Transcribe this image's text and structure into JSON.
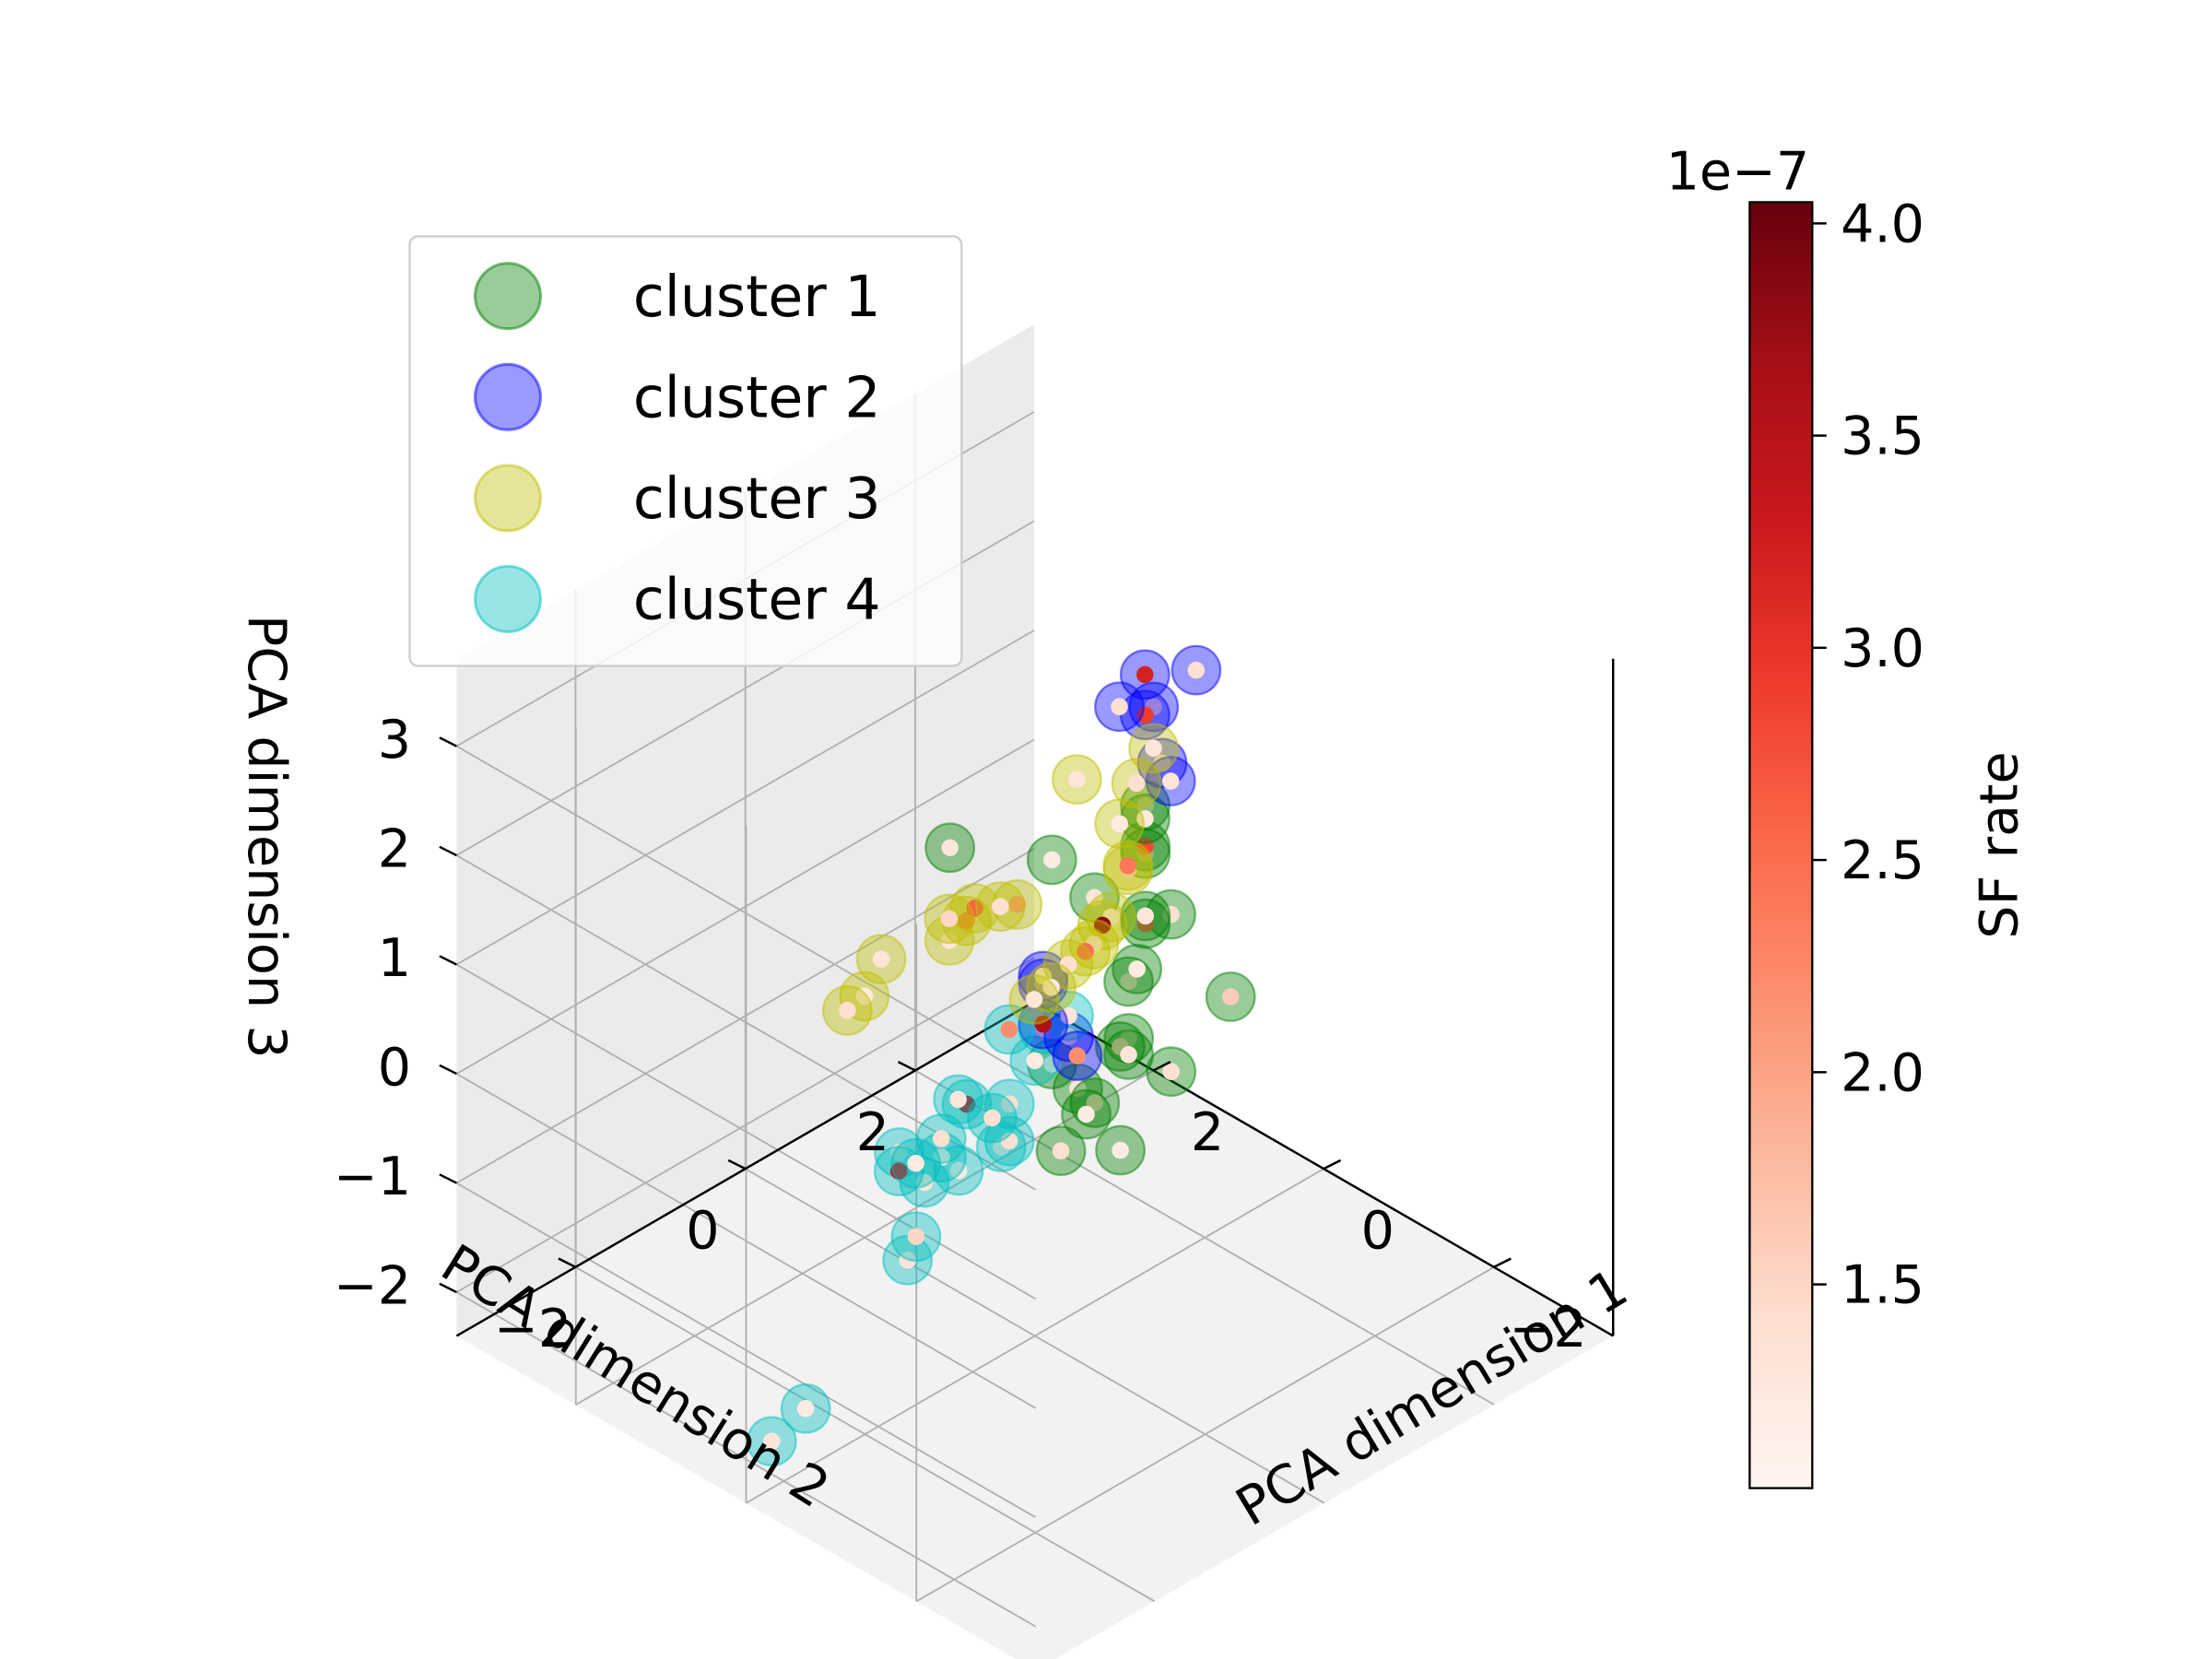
{
  "chart_data": {
    "type": "scatter",
    "projection": "3d",
    "xlabel": "PCA dimension 1",
    "ylabel": "PCA dimension 2",
    "zlabel": "PCA dimension 3",
    "xlim": [
      -3.4,
      3.4
    ],
    "ylim": [
      -3.4,
      3.4
    ],
    "zlim": [
      -2.4,
      3.8
    ],
    "xticks": [
      {
        "v": -2,
        "label": "−2"
      },
      {
        "v": 0,
        "label": "0"
      },
      {
        "v": 2,
        "label": "2"
      }
    ],
    "yticks": [
      {
        "v": -2,
        "label": "−2"
      },
      {
        "v": 0,
        "label": "0"
      },
      {
        "v": 2,
        "label": "2"
      }
    ],
    "zticks": [
      {
        "v": -2,
        "label": "−2"
      },
      {
        "v": -1,
        "label": "−1"
      },
      {
        "v": 0,
        "label": "0"
      },
      {
        "v": 1,
        "label": "1"
      },
      {
        "v": 2,
        "label": "2"
      },
      {
        "v": 3,
        "label": "3"
      }
    ],
    "legend": {
      "placement": "upper-left",
      "entries": [
        {
          "label": "cluster 1",
          "color": "#008000"
        },
        {
          "label": "cluster 2",
          "color": "#0000ff"
        },
        {
          "label": "cluster 3",
          "color": "#bfbf00"
        },
        {
          "label": "cluster 4",
          "color": "#00bfbf"
        }
      ]
    },
    "colorbar": {
      "label": "SF rate",
      "offset_label": "1e−7",
      "range": [
        1.02,
        4.05
      ],
      "ticks": [
        {
          "v": 1.5,
          "label": "1.5"
        },
        {
          "v": 2.0,
          "label": "2.0"
        },
        {
          "v": 2.5,
          "label": "2.5"
        },
        {
          "v": 3.0,
          "label": "3.0"
        },
        {
          "v": 3.5,
          "label": "3.5"
        },
        {
          "v": 4.0,
          "label": "4.0"
        }
      ],
      "colormap": "Reds",
      "stops": [
        "#fff5f0",
        "#fee0d2",
        "#fcbba1",
        "#fc9272",
        "#fb6a4a",
        "#ef3b2c",
        "#cb181d",
        "#a50f15",
        "#67000d"
      ]
    },
    "series": [
      {
        "name": "cluster 1",
        "color": "#008000",
        "points": [
          [
            -2.6,
            -2.3,
            1.5,
            1.4
          ],
          [
            -2.4,
            -1.9,
            1.8,
            1.3
          ],
          [
            -2.2,
            -1.5,
            1.4,
            1.5
          ],
          [
            -2.3,
            -1.2,
            1.9,
            1.2
          ],
          [
            -2.0,
            -1.0,
            1.6,
            1.6
          ],
          [
            -1.8,
            -0.7,
            1.3,
            1.3
          ],
          [
            -1.5,
            -0.4,
            1.7,
            1.4
          ],
          [
            -1.2,
            0.0,
            1.5,
            1.2
          ],
          [
            -0.9,
            0.4,
            1.6,
            2.6
          ],
          [
            -0.6,
            0.7,
            1.4,
            1.3
          ],
          [
            -0.3,
            1.0,
            1.7,
            1.5
          ],
          [
            0.0,
            1.3,
            1.5,
            2.8
          ],
          [
            0.3,
            1.6,
            1.6,
            1.4
          ],
          [
            0.5,
            1.8,
            1.3,
            1.2
          ],
          [
            -1.0,
            -0.3,
            2.2,
            1.3
          ],
          [
            -1.4,
            0.2,
            2.0,
            1.4
          ],
          [
            -0.7,
            -0.5,
            2.5,
            1.2
          ],
          [
            -0.2,
            -1.2,
            2.7,
            1.3
          ],
          [
            -1.6,
            -1.0,
            0.8,
            1.2
          ],
          [
            -1.0,
            -0.8,
            0.9,
            1.3
          ],
          [
            -2.0,
            -0.4,
            1.1,
            1.4
          ],
          [
            -2.5,
            -1.5,
            1.1,
            1.2
          ],
          [
            -1.7,
            0.6,
            1.2,
            1.6
          ]
        ]
      },
      {
        "name": "cluster 2",
        "color": "#0000ff",
        "points": [
          [
            0.3,
            1.8,
            1.9,
            1.3
          ],
          [
            0.7,
            2.1,
            2.1,
            1.5
          ],
          [
            1.0,
            2.3,
            1.8,
            2.9
          ],
          [
            0.6,
            2.5,
            2.3,
            1.4
          ],
          [
            1.3,
            2.6,
            1.9,
            3.2
          ],
          [
            0.4,
            2.0,
            1.6,
            1.3
          ],
          [
            1.9,
            2.9,
            1.2,
            1.4
          ],
          [
            0.4,
            0.8,
            -0.2,
            1.5
          ],
          [
            0.9,
            1.0,
            -0.4,
            3.6
          ],
          [
            1.2,
            1.3,
            -0.3,
            1.3
          ],
          [
            0.6,
            1.1,
            -0.6,
            2.2
          ],
          [
            1.5,
            1.6,
            -0.5,
            1.2
          ]
        ]
      },
      {
        "name": "cluster 3",
        "color": "#bfbf00",
        "points": [
          [
            1.5,
            2.9,
            1.0,
            1.3
          ],
          [
            1.8,
            3.0,
            0.5,
            1.4
          ],
          [
            1.6,
            2.6,
            0.4,
            1.2
          ],
          [
            1.3,
            2.4,
            0.2,
            1.5
          ],
          [
            2.3,
            2.8,
            0.4,
            1.3
          ],
          [
            1.9,
            3.0,
            -0.3,
            2.4
          ],
          [
            1.7,
            2.6,
            -0.5,
            1.2
          ],
          [
            2.0,
            2.8,
            -0.8,
            3.8
          ],
          [
            2.3,
            3.0,
            -1.2,
            1.3
          ],
          [
            2.5,
            3.1,
            -1.4,
            2.5
          ],
          [
            2.8,
            3.2,
            -1.7,
            1.4
          ],
          [
            3.0,
            3.2,
            -2.0,
            1.2
          ],
          [
            3.2,
            3.2,
            -2.2,
            1.3
          ],
          [
            2.6,
            2.4,
            -0.7,
            2.1
          ],
          [
            2.9,
            2.5,
            -0.9,
            1.4
          ],
          [
            2.7,
            2.0,
            -0.6,
            2.6
          ],
          [
            2.4,
            1.6,
            -0.4,
            2.5
          ],
          [
            2.3,
            1.3,
            -0.4,
            1.3
          ],
          [
            3.3,
            2.3,
            -1.1,
            1.5
          ],
          [
            3.4,
            1.6,
            -1.2,
            1.3
          ],
          [
            3.3,
            1.1,
            -1.4,
            1.4
          ],
          [
            2.9,
            0.9,
            -1.0,
            1.2
          ]
        ]
      },
      {
        "name": "cluster 4",
        "color": "#00bfbf",
        "points": [
          [
            0.5,
            0.9,
            -0.1,
            1.3
          ],
          [
            0.3,
            0.4,
            0.1,
            1.5
          ],
          [
            -0.2,
            -0.2,
            0.3,
            1.2
          ],
          [
            -0.6,
            -0.9,
            0.4,
            1.4
          ],
          [
            -1.1,
            -1.5,
            0.5,
            1.3
          ],
          [
            -1.2,
            -2.1,
            0.6,
            1.2
          ],
          [
            -1.0,
            -2.6,
            0.9,
            1.3
          ],
          [
            0.8,
            0.3,
            -0.9,
            1.4
          ],
          [
            0.9,
            -0.5,
            -1.0,
            1.2
          ],
          [
            0.7,
            -0.9,
            -0.8,
            3.4
          ],
          [
            0.1,
            -1.2,
            -0.5,
            1.3
          ],
          [
            -0.4,
            -1.8,
            -0.5,
            1.5
          ],
          [
            -0.7,
            -2.2,
            -0.4,
            1.3
          ],
          [
            -0.3,
            -1.4,
            0.0,
            1.2
          ],
          [
            1.3,
            0.4,
            -1.0,
            1.3
          ],
          [
            1.0,
            -0.1,
            -1.0,
            1.4
          ],
          [
            1.6,
            1.3,
            -0.9,
            2.2
          ],
          [
            -0.3,
            -3.4,
            -1.7,
            1.3
          ],
          [
            -0.5,
            -3.2,
            -1.4,
            1.2
          ],
          [
            0.2,
            -0.6,
            -0.1,
            3.5
          ],
          [
            -0.2,
            -0.5,
            -0.3,
            1.4
          ]
        ]
      }
    ]
  }
}
